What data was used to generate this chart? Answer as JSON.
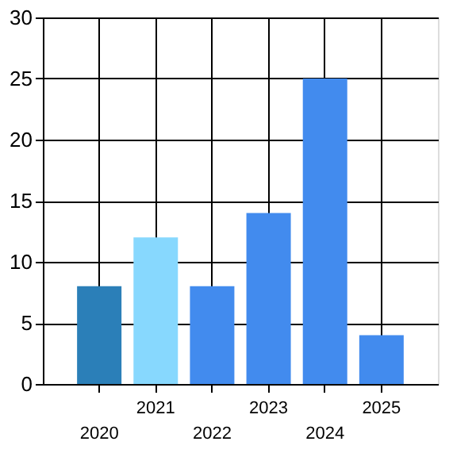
{
  "chart_data": {
    "type": "bar",
    "categories": [
      "2020",
      "2021",
      "2022",
      "2023",
      "2024",
      "2025"
    ],
    "values": [
      8,
      12,
      8,
      14,
      25,
      4
    ],
    "colors": [
      "#2b7fb8",
      "#87d8fe",
      "#428bee",
      "#428bee",
      "#428bee",
      "#428bee"
    ],
    "ylim": [
      0,
      30
    ],
    "yticks": [
      0,
      5,
      10,
      15,
      20,
      25,
      30
    ],
    "grid": true
  }
}
